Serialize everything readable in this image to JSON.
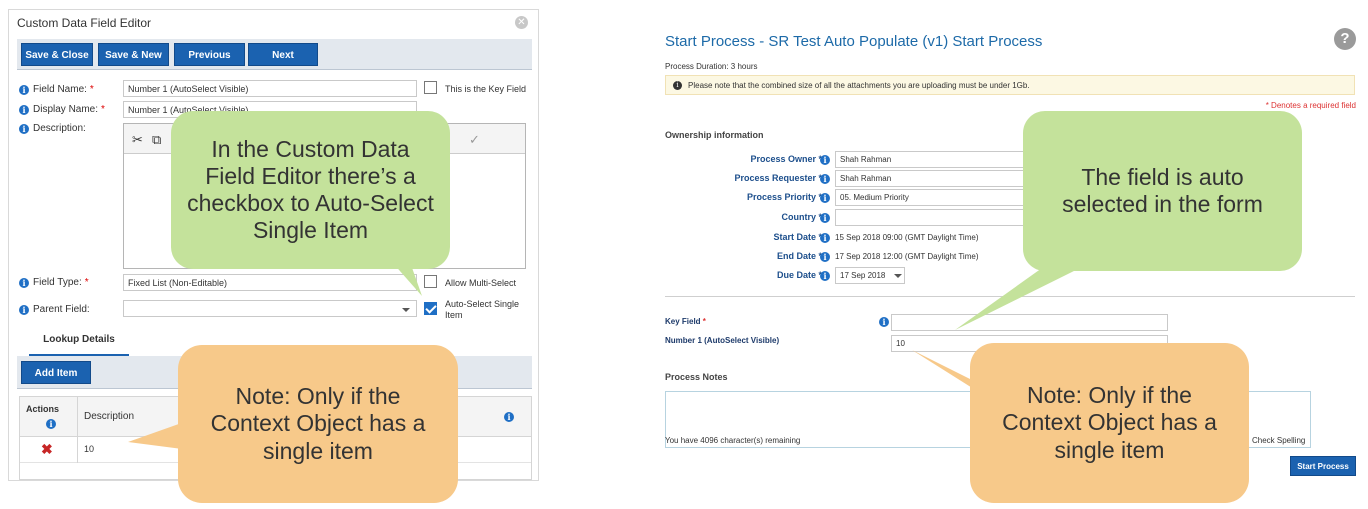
{
  "left_panel": {
    "title": "Custom Data Field Editor",
    "close_icon": "close-circle-icon",
    "toolbar": {
      "save_close": "Save & Close",
      "save_new": "Save & New",
      "previous": "Previous",
      "next": "Next"
    },
    "fields": {
      "field_name_label": "Field Name:",
      "field_name_value": "Number 1 (AutoSelect Visible)",
      "key_field_label": "This is the Key Field",
      "display_name_label": "Display Name:",
      "display_name_value": "Number 1 (AutoSelect Visible)",
      "description_label": "Description:",
      "field_type_label": "Field Type:",
      "field_type_value": "Fixed List (Non-Editable)",
      "allow_multi_label": "Allow Multi-Select",
      "parent_field_label": "Parent Field:",
      "parent_field_value": "",
      "auto_select_label": "Auto-Select Single Item",
      "required_mark": "*"
    },
    "lookup": {
      "tab_label": "Lookup Details",
      "add_item": "Add Item",
      "col_actions": "Actions",
      "col_description": "Description",
      "rows": [
        {
          "description": "10"
        }
      ]
    }
  },
  "right_panel": {
    "title": "Start Process - SR Test Auto Populate (v1) Start Process",
    "duration": "Process Duration: 3 hours",
    "notice": "Please note that the combined size of all the attachments you are uploading must be under 1Gb.",
    "required_note": "* Denotes a required field",
    "ownership_heading": "Ownership information",
    "ownership": [
      {
        "label": "Process Owner *",
        "value": "Shah Rahman",
        "kind": "input"
      },
      {
        "label": "Process Requester *",
        "value": "Shah Rahman",
        "kind": "input"
      },
      {
        "label": "Process Priority *",
        "value": "05. Medium Priority",
        "kind": "input"
      },
      {
        "label": "Country *",
        "value": "",
        "kind": "input"
      },
      {
        "label": "Start Date *",
        "value": "15 Sep 2018 09:00 (GMT Daylight Time)",
        "kind": "text"
      },
      {
        "label": "End Date *",
        "value": "17 Sep 2018 12:00 (GMT Daylight Time)",
        "kind": "text"
      },
      {
        "label": "Due Date *",
        "value": "17 Sep 2018",
        "kind": "select"
      }
    ],
    "key_field_label": "Key Field",
    "number1_label": "Number 1 (AutoSelect Visible)",
    "number1_value": "10",
    "process_notes_heading": "Process Notes",
    "chars_remaining": "You have 4096 character(s) remaining",
    "check_spelling": "Check Spelling",
    "start_button": "Start Process"
  },
  "callouts": {
    "green_left": "In the Custom Data Field Editor there’s a checkbox to Auto-Select Single Item",
    "green_right": "The field is auto selected in the form",
    "orange_left": "Note: Only if the Context Object has a single item",
    "orange_right": "Note: Only if the Context Object has a single item"
  },
  "colors": {
    "primary_button": "#1b62b0",
    "title_blue": "#1d6aa8",
    "callout_green": "#c4e29b",
    "callout_orange": "#f7c98a",
    "required_red": "#d33333"
  }
}
